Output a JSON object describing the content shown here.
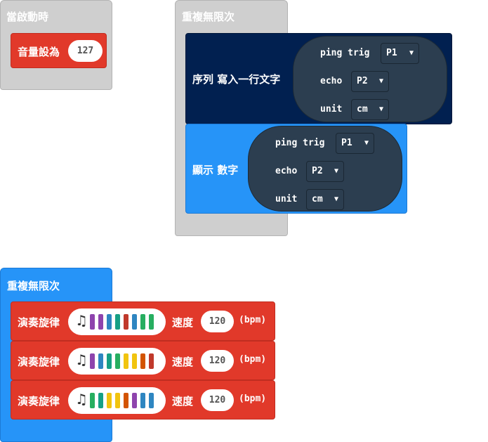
{
  "on_start": {
    "hat_label": "當啟動時",
    "set_volume_label": "音量設為",
    "volume_value": "127"
  },
  "forever_top": {
    "hat_label": "重複無限次",
    "serial_label": "序列 寫入一行文字",
    "show_number_label": "顯示 數字",
    "ping_label": "ping trig",
    "echo_label": "echo",
    "unit_label": "unit",
    "trig_value": "P1",
    "echo_value": "P2",
    "unit_value": "cm"
  },
  "forever_bottom": {
    "hat_label": "重複無限次",
    "play_label": "演奏旋律",
    "tempo_label": "速度",
    "bpm_label": "(bpm)",
    "melodies": [
      {
        "tempo": "120",
        "colors": [
          "#8e44ad",
          "#8e44ad",
          "#2e86c1",
          "#16a085",
          "#c0392b",
          "#2e86c1",
          "#27ae60",
          "#27ae60"
        ]
      },
      {
        "tempo": "120",
        "colors": [
          "#8e44ad",
          "#2e86c1",
          "#16a085",
          "#27ae60",
          "#f1c40f",
          "#f1c40f",
          "#d35400",
          "#c0392b"
        ]
      },
      {
        "tempo": "120",
        "colors": [
          "#27ae60",
          "#16a085",
          "#f1c40f",
          "#f1c40f",
          "#d35400",
          "#8e44ad",
          "#2e86c1",
          "#2e86c1"
        ]
      }
    ]
  },
  "colors": {
    "event": "#cfcfcf",
    "music": "#e1392a",
    "serial": "#012050",
    "basic": "#2694f8",
    "sensor": "#2c3e50"
  }
}
